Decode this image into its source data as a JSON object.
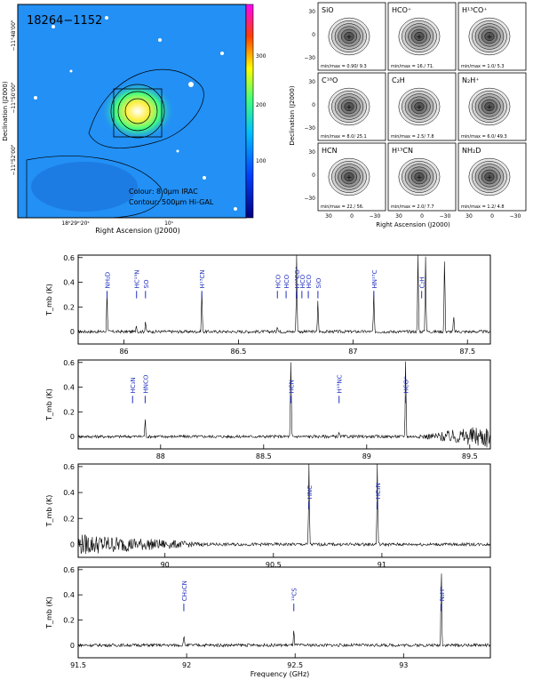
{
  "colors": {
    "line_label": "#1f2fbf",
    "spectrum": "#000000"
  },
  "top_left_map": {
    "title": "18264−1152",
    "xlabel": "Right Ascension (J2000)",
    "ylabel": "Declination (J2000)",
    "xticks": [
      "18ʰ29ᵐ20ˢ",
      "10ˢ"
    ],
    "yticks": [
      "−11°48'00\"",
      "−11°50'00\"",
      "−11°52'00\""
    ],
    "colorbar_ticks": [
      "300",
      "200",
      "100"
    ],
    "notes": [
      "Colour: 8.0μm IRAC",
      "Contour: 500μm Hi-GAL"
    ]
  },
  "top_right_maps": {
    "xlabel": "Right Ascension (J2000)",
    "ylabel": "Declination (J2000)",
    "xticks": [
      "30",
      "0",
      "−30"
    ],
    "yticks": [
      "30",
      "0",
      "−30"
    ],
    "panels": [
      {
        "name": "SiO",
        "minmax": "min/max = 0.90/ 9.3"
      },
      {
        "name": "HCO⁺",
        "minmax": "min/max = 16./ 71."
      },
      {
        "name": "H¹³CO⁺",
        "minmax": "min/max = 1.0/ 5.3"
      },
      {
        "name": "C¹⁸O",
        "minmax": "min/max = 8.0/ 25.1"
      },
      {
        "name": "C₂H",
        "minmax": "min/max = 2.5/ 7.8"
      },
      {
        "name": "N₂H⁺",
        "minmax": "min/max = 6.0/ 49.3"
      },
      {
        "name": "HCN",
        "minmax": "min/max = 22./ 56."
      },
      {
        "name": "H¹³CN",
        "minmax": "min/max = 2.0/ 7.7"
      },
      {
        "name": "NH₂D",
        "minmax": "min/max = 1.2/ 4.8"
      }
    ]
  },
  "chart_data": [
    {
      "type": "line",
      "xlim": [
        85.8,
        87.6
      ],
      "ylim": [
        -0.1,
        0.62
      ],
      "ylabel": "T_mb (K)",
      "xlabel": "",
      "xticks": [
        86,
        86.5,
        87,
        87.5
      ],
      "yticks": [
        0,
        0.2,
        0.4,
        0.6
      ],
      "peaks": [
        {
          "x": 85.926,
          "y": 0.33
        },
        {
          "x": 86.054,
          "y": 0.06
        },
        {
          "x": 86.094,
          "y": 0.09
        },
        {
          "x": 86.34,
          "y": 0.33
        },
        {
          "x": 86.67,
          "y": 0.05
        },
        {
          "x": 86.754,
          "y": 0.62
        },
        {
          "x": 86.847,
          "y": 0.26
        },
        {
          "x": 87.091,
          "y": 0.32
        },
        {
          "x": 87.284,
          "y": 0.62
        },
        {
          "x": 87.317,
          "y": 0.62
        },
        {
          "x": 87.4,
          "y": 0.6
        },
        {
          "x": 87.44,
          "y": 0.12
        }
      ],
      "labels": [
        {
          "text": "NH₂D",
          "x": 85.926
        },
        {
          "text": "HC¹⁵N",
          "x": 86.055
        },
        {
          "text": "SO",
          "x": 86.094
        },
        {
          "text": "H¹³CN",
          "x": 86.34
        },
        {
          "text": "HCO",
          "x": 86.67
        },
        {
          "text": "HCO",
          "x": 86.708
        },
        {
          "text": "H¹³CO⁺",
          "x": 86.754
        },
        {
          "text": "HCO",
          "x": 86.777
        },
        {
          "text": "HCO",
          "x": 86.805
        },
        {
          "text": "SiO",
          "x": 86.847
        },
        {
          "text": "HN¹³C",
          "x": 87.091
        },
        {
          "text": "C₂H",
          "x": 87.3
        }
      ]
    },
    {
      "type": "line",
      "xlim": [
        87.6,
        89.6
      ],
      "ylim": [
        -0.1,
        0.62
      ],
      "ylabel": "T_mb (K)",
      "xlabel": "",
      "xticks": [
        88,
        88.5,
        89,
        89.5
      ],
      "yticks": [
        0,
        0.2,
        0.4,
        0.6
      ],
      "peaks": [
        {
          "x": 87.925,
          "y": 0.14
        },
        {
          "x": 88.632,
          "y": 0.62
        },
        {
          "x": 88.866,
          "y": 0.03
        },
        {
          "x": 89.189,
          "y": 0.62
        }
      ],
      "labels": [
        {
          "text": "HC₃N",
          "x": 87.864
        },
        {
          "text": "HNCO",
          "x": 87.925
        },
        {
          "text": "HCN",
          "x": 88.632
        },
        {
          "text": "H¹⁵NC",
          "x": 88.866
        },
        {
          "text": "HCO⁺",
          "x": 89.189
        }
      ]
    },
    {
      "type": "line",
      "xlim": [
        89.6,
        91.5
      ],
      "ylim": [
        -0.1,
        0.62
      ],
      "ylabel": "T_mb (K)",
      "xlabel": "",
      "xticks": [
        90,
        90.5,
        91
      ],
      "yticks": [
        0,
        0.2,
        0.4,
        0.6
      ],
      "peaks": [
        {
          "x": 90.664,
          "y": 0.62
        },
        {
          "x": 90.979,
          "y": 0.62
        }
      ],
      "labels": [
        {
          "text": "HNC",
          "x": 90.664
        },
        {
          "text": "HC₃N",
          "x": 90.979
        }
      ]
    },
    {
      "type": "line",
      "xlim": [
        91.5,
        93.4
      ],
      "ylim": [
        -0.1,
        0.62
      ],
      "ylabel": "T_mb (K)",
      "xlabel": "Frequency (GHz)",
      "xticks": [
        91.5,
        92,
        92.5,
        93
      ],
      "yticks": [
        0,
        0.2,
        0.4,
        0.6
      ],
      "peaks": [
        {
          "x": 91.987,
          "y": 0.08
        },
        {
          "x": 92.494,
          "y": 0.12
        },
        {
          "x": 93.174,
          "y": 0.62
        }
      ],
      "labels": [
        {
          "text": "CH₃CN",
          "x": 91.987
        },
        {
          "text": "¹³CS",
          "x": 92.494
        },
        {
          "text": "N₂H⁺",
          "x": 93.174
        }
      ]
    }
  ]
}
